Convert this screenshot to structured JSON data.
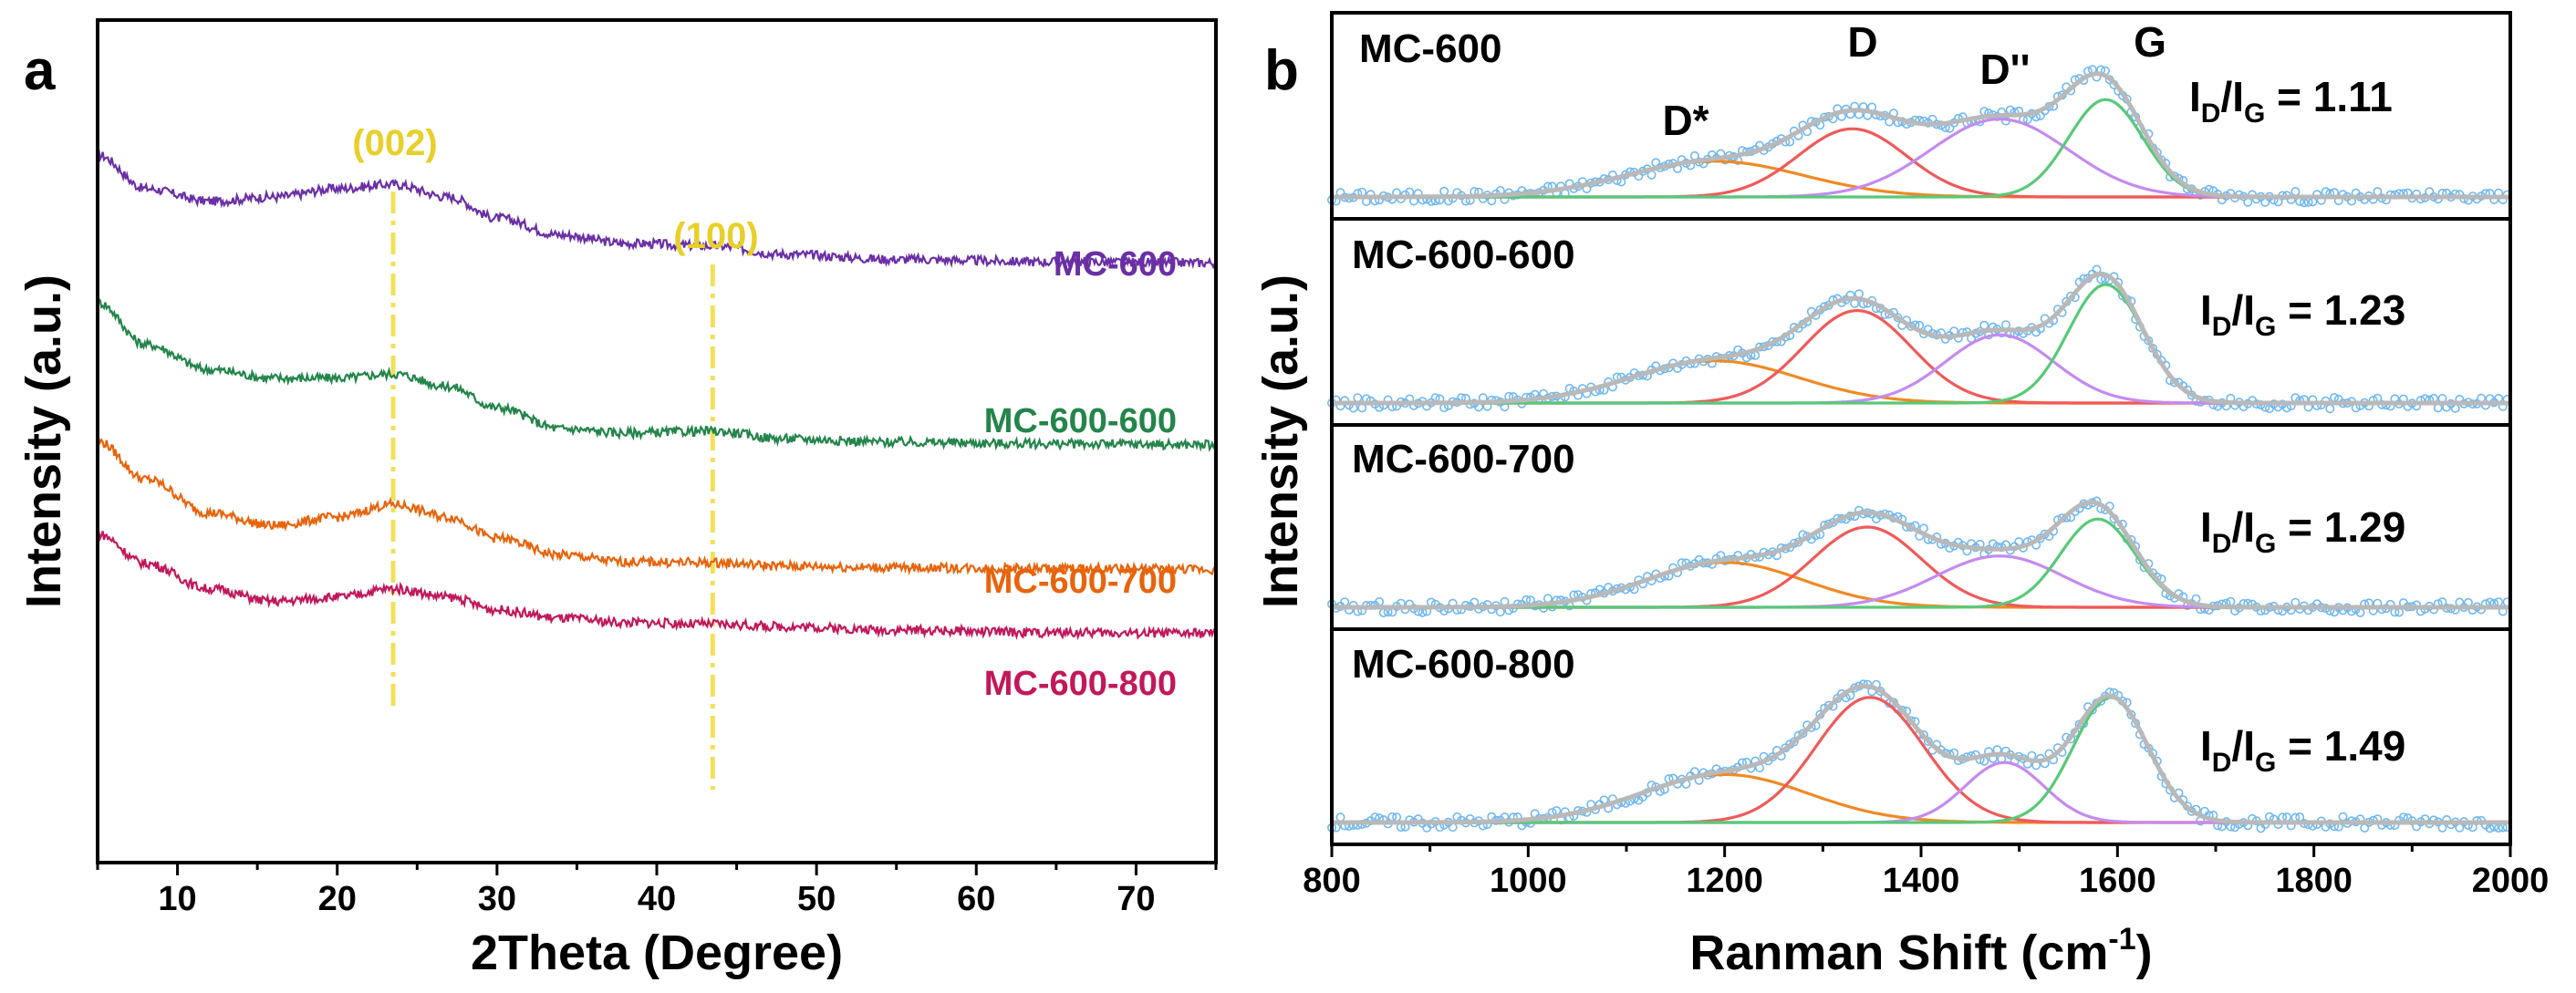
{
  "colors": {
    "mc600": "#6a2fa5",
    "mc600_600": "#23854a",
    "mc600_700": "#e8640c",
    "mc600_800": "#c2185b",
    "guide": "#f3e05a",
    "guide_label": "#e8cf2a",
    "raw": "#6fb8f2",
    "fit": "#b9b9b9",
    "dstar": "#ef8a25",
    "d": "#f05a5a",
    "ddbl": "#c48bf0",
    "g": "#58c978"
  },
  "chart_data": [
    {
      "type": "line",
      "panel_label": "a",
      "xlabel": "2Theta (Degree)",
      "ylabel": "Intensity (a.u.)",
      "xlim": [
        5,
        75
      ],
      "xticks": [
        "10",
        "20",
        "30",
        "40",
        "50",
        "60",
        "70"
      ],
      "annotations": [
        {
          "text": "(002)",
          "x": 23.5
        },
        {
          "text": "(100)",
          "x": 43.5
        }
      ],
      "series": [
        {
          "name": "MC-600",
          "color_key": "mc600",
          "x": [
            5,
            8,
            12,
            16,
            20,
            23.5,
            27,
            30,
            34,
            38,
            43.5,
            48,
            55,
            65,
            75
          ],
          "y": [
            0.84,
            0.8,
            0.785,
            0.79,
            0.8,
            0.805,
            0.79,
            0.765,
            0.745,
            0.735,
            0.732,
            0.722,
            0.716,
            0.713,
            0.712
          ]
        },
        {
          "name": "MC-600-600",
          "color_key": "mc600_600",
          "x": [
            5,
            8,
            12,
            16,
            20,
            23.5,
            27,
            30,
            34,
            38,
            43.5,
            48,
            55,
            65,
            75
          ],
          "y": [
            0.665,
            0.615,
            0.585,
            0.575,
            0.575,
            0.58,
            0.565,
            0.54,
            0.515,
            0.51,
            0.512,
            0.503,
            0.499,
            0.497,
            0.496
          ]
        },
        {
          "name": "MC-600-700",
          "color_key": "mc600_700",
          "x": [
            5,
            8,
            12,
            16,
            20,
            23.5,
            27,
            30,
            34,
            38,
            43.5,
            48,
            55,
            65,
            75
          ],
          "y": [
            0.5,
            0.455,
            0.415,
            0.4,
            0.41,
            0.425,
            0.41,
            0.385,
            0.365,
            0.357,
            0.356,
            0.352,
            0.35,
            0.349,
            0.348
          ]
        },
        {
          "name": "MC-600-800",
          "color_key": "mc600_800",
          "x": [
            5,
            8,
            12,
            16,
            20,
            23.5,
            27,
            30,
            34,
            38,
            43.5,
            48,
            55,
            65,
            75
          ],
          "y": [
            0.39,
            0.355,
            0.325,
            0.31,
            0.315,
            0.325,
            0.315,
            0.3,
            0.29,
            0.285,
            0.283,
            0.28,
            0.276,
            0.273,
            0.272
          ]
        }
      ]
    },
    {
      "type": "line",
      "panel_label": "b",
      "xlabel": "Ranman Shift (cm",
      "xlabel_sup": "-1",
      "xlabel_end": ")",
      "ylabel": "Intensity (a.u.)",
      "xlim": [
        800,
        2000
      ],
      "xticks": [
        "800",
        "1000",
        "1200",
        "1400",
        "1600",
        "1800",
        "2000"
      ],
      "peak_labels": {
        "dstar": "D*",
        "d": "D",
        "ddbl": "D''",
        "g": "G"
      },
      "ratio_prefix": "I",
      "ratio_sub_d": "D",
      "ratio_slash": "/I",
      "ratio_sub_g": "G",
      "panels": [
        {
          "name": "MC-600",
          "ratio": " = 1.11",
          "peaks": {
            "dstar": {
              "center": 1190,
              "height": 0.22,
              "width": 90
            },
            "d": {
              "center": 1330,
              "height": 0.42,
              "width": 55
            },
            "ddbl": {
              "center": 1480,
              "height": 0.48,
              "width": 70
            },
            "g": {
              "center": 1588,
              "height": 0.6,
              "width": 38
            }
          }
        },
        {
          "name": "MC-600-600",
          "ratio": " = 1.23",
          "peaks": {
            "dstar": {
              "center": 1190,
              "height": 0.26,
              "width": 85
            },
            "d": {
              "center": 1335,
              "height": 0.57,
              "width": 55
            },
            "ddbl": {
              "center": 1480,
              "height": 0.42,
              "width": 55
            },
            "g": {
              "center": 1588,
              "height": 0.73,
              "width": 38
            }
          }
        },
        {
          "name": "MC-600-700",
          "ratio": " = 1.29",
          "peaks": {
            "dstar": {
              "center": 1200,
              "height": 0.28,
              "width": 80
            },
            "d": {
              "center": 1345,
              "height": 0.5,
              "width": 55
            },
            "ddbl": {
              "center": 1480,
              "height": 0.32,
              "width": 65
            },
            "g": {
              "center": 1580,
              "height": 0.55,
              "width": 38
            }
          }
        },
        {
          "name": "MC-600-800",
          "ratio": " = 1.49",
          "peaks": {
            "dstar": {
              "center": 1200,
              "height": 0.28,
              "width": 85
            },
            "d": {
              "center": 1348,
              "height": 0.73,
              "width": 55
            },
            "ddbl": {
              "center": 1485,
              "height": 0.35,
              "width": 40
            },
            "g": {
              "center": 1593,
              "height": 0.73,
              "width": 38
            }
          }
        }
      ]
    }
  ]
}
